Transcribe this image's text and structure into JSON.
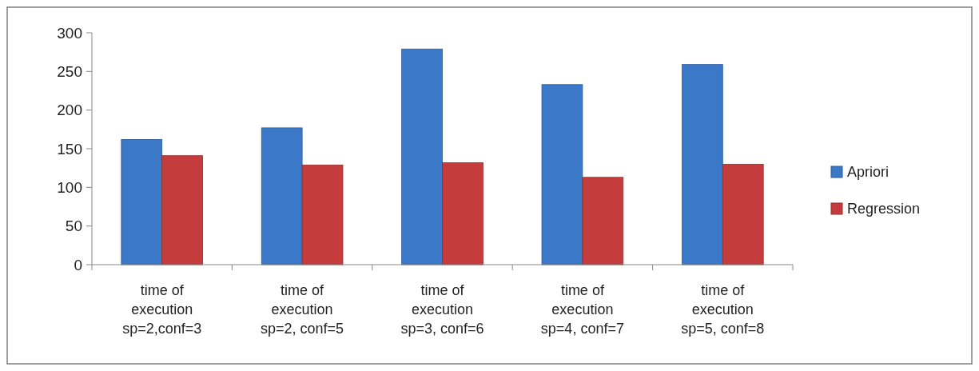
{
  "chart_data": {
    "type": "bar",
    "categories": [
      "time of\nexecution\nsp=2,conf=3",
      "time of\nexecution\nsp=2, conf=5",
      "time of\nexecution\nsp=3, conf=6",
      "time of\nexecution\nsp=4, conf=7",
      "time of\nexecution\nsp=5, conf=8"
    ],
    "series": [
      {
        "name": "Apriori",
        "color": "#3c78c8",
        "values": [
          162,
          177,
          279,
          233,
          259
        ]
      },
      {
        "name": "Regression",
        "color": "#c43c3c",
        "values": [
          141,
          129,
          132,
          113,
          130
        ]
      }
    ],
    "ylim": [
      0,
      300
    ],
    "yticks": [
      0,
      50,
      100,
      150,
      200,
      250,
      300
    ],
    "grid": false,
    "legend": "right"
  }
}
